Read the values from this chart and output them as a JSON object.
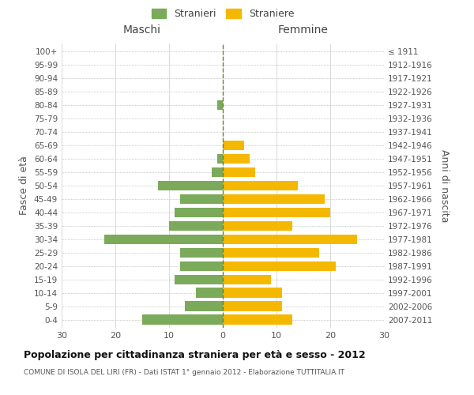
{
  "age_groups": [
    "0-4",
    "5-9",
    "10-14",
    "15-19",
    "20-24",
    "25-29",
    "30-34",
    "35-39",
    "40-44",
    "45-49",
    "50-54",
    "55-59",
    "60-64",
    "65-69",
    "70-74",
    "75-79",
    "80-84",
    "85-89",
    "90-94",
    "95-99",
    "100+"
  ],
  "birth_years": [
    "2007-2011",
    "2002-2006",
    "1997-2001",
    "1992-1996",
    "1987-1991",
    "1982-1986",
    "1977-1981",
    "1972-1976",
    "1967-1971",
    "1962-1966",
    "1957-1961",
    "1952-1956",
    "1947-1951",
    "1942-1946",
    "1937-1941",
    "1932-1936",
    "1927-1931",
    "1922-1926",
    "1917-1921",
    "1912-1916",
    "≤ 1911"
  ],
  "maschi": [
    15,
    7,
    5,
    9,
    8,
    8,
    22,
    10,
    9,
    8,
    12,
    2,
    1,
    0,
    0,
    0,
    1,
    0,
    0,
    0,
    0
  ],
  "femmine": [
    13,
    11,
    11,
    9,
    21,
    18,
    25,
    13,
    20,
    19,
    14,
    6,
    5,
    4,
    0,
    0,
    0,
    0,
    0,
    0,
    0
  ],
  "male_color": "#7aaa5a",
  "female_color": "#f5b800",
  "center_line_color": "#7a7a30",
  "grid_color": "#cccccc",
  "bg_color": "#ffffff",
  "title": "Popolazione per cittadinanza straniera per età e sesso - 2012",
  "subtitle": "COMUNE DI ISOLA DEL LIRI (FR) - Dati ISTAT 1° gennaio 2012 - Elaborazione TUTTITALIA.IT",
  "xlabel_left": "Maschi",
  "xlabel_right": "Femmine",
  "ylabel_left": "Fasce di età",
  "ylabel_right": "Anni di nascita",
  "legend_male": "Stranieri",
  "legend_female": "Straniere",
  "xlim": 30
}
